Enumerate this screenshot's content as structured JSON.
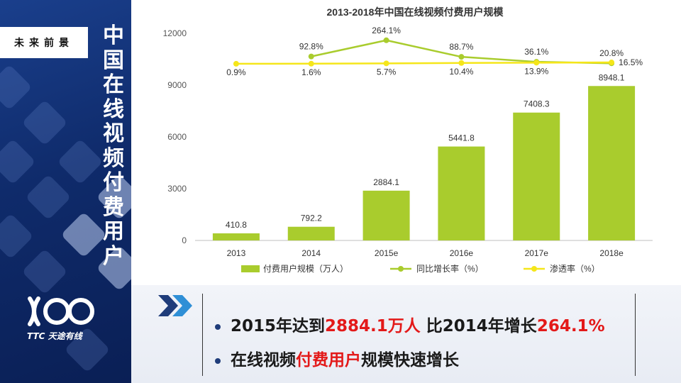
{
  "slide": {
    "tagline": "未来前景",
    "vertical_title": "中国在线视频付费用户",
    "logo_text": "TTC 天途有线"
  },
  "colors": {
    "bar": "#a9cc2d",
    "yoy_line": "#a9cc2d",
    "penetration_line": "#f5e61a",
    "highlight": "#e31919",
    "panel": "#0f2b6b"
  },
  "chart_data": {
    "type": "bar",
    "title": "2013-2018年中国在线视频付费用户规模",
    "categories": [
      "2013",
      "2014",
      "2015e",
      "2016e",
      "2017e",
      "2018e"
    ],
    "ylim": [
      0,
      12000
    ],
    "yticks": [
      0,
      3000,
      6000,
      9000,
      12000
    ],
    "grid": false,
    "legend_position": "bottom",
    "series": [
      {
        "name": "付费用户规模（万人）",
        "type": "bar",
        "values": [
          410.8,
          792.2,
          2884.1,
          5441.8,
          7408.3,
          8948.1
        ],
        "labels": [
          "410.8",
          "792.2",
          "2884.1",
          "5441.8",
          "7408.3",
          "8948.1"
        ]
      },
      {
        "name": "同比增长率（%）",
        "type": "line",
        "values": [
          null,
          92.8,
          264.1,
          88.7,
          36.1,
          20.8
        ],
        "labels": [
          "",
          "92.8%",
          "264.1%",
          "88.7%",
          "36.1%",
          "20.8%"
        ]
      },
      {
        "name": "渗透率（%）",
        "type": "line",
        "values": [
          0.9,
          1.6,
          5.7,
          10.4,
          13.9,
          16.5
        ],
        "labels": [
          "0.9%",
          "1.6%",
          "5.7%",
          "10.4%",
          "13.9%",
          "16.5%"
        ]
      }
    ]
  },
  "summary": {
    "bullet1": {
      "pre": "2015年达到",
      "hl1": "2884.1万人",
      "mid": " 比2014年增长",
      "hl2": "264.1%"
    },
    "bullet2": {
      "pre": "在线视频",
      "hl": "付费用户",
      "post": "规模快速增长"
    }
  }
}
